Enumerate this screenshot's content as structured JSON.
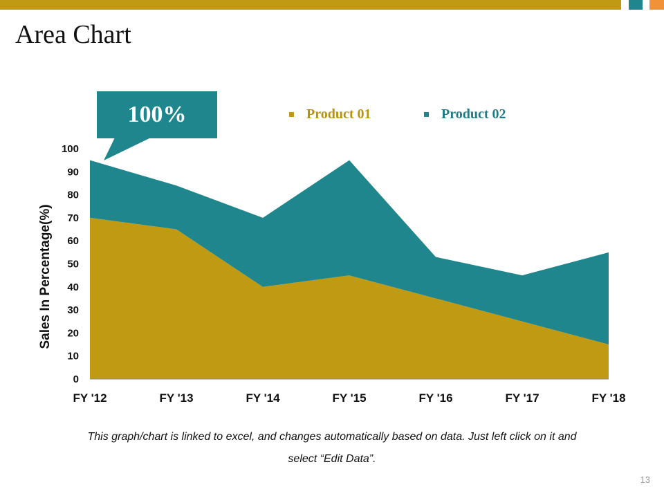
{
  "slide": {
    "title": "Area Chart",
    "callout": "100%",
    "footnote_line1": "This graph/chart is linked to excel, and changes automatically based on data. Just left click on it and",
    "footnote_line2": "select “Edit Data”.",
    "page_number": "13"
  },
  "colors": {
    "gold": "#C09A13",
    "teal": "#1F868E",
    "orange": "#F29238"
  },
  "chart_data": {
    "type": "area",
    "title": "",
    "xlabel": "",
    "ylabel": "Sales In Percentage(%)",
    "categories": [
      "FY '12",
      "FY '13",
      "FY '14",
      "FY '15",
      "FY '16",
      "FY '17",
      "FY '18"
    ],
    "yticks": [
      "0",
      "10",
      "20",
      "30",
      "40",
      "50",
      "60",
      "70",
      "80",
      "90",
      "100"
    ],
    "ylim": [
      0,
      100
    ],
    "stacked": true,
    "series": [
      {
        "name": "Product 01",
        "color": "#C09A13",
        "values": [
          70,
          65,
          40,
          45,
          35,
          25,
          15
        ]
      },
      {
        "name": "Product 02",
        "color": "#1F868E",
        "values": [
          25,
          19,
          30,
          50,
          18,
          20,
          40
        ]
      }
    ],
    "legend_position": "top"
  }
}
